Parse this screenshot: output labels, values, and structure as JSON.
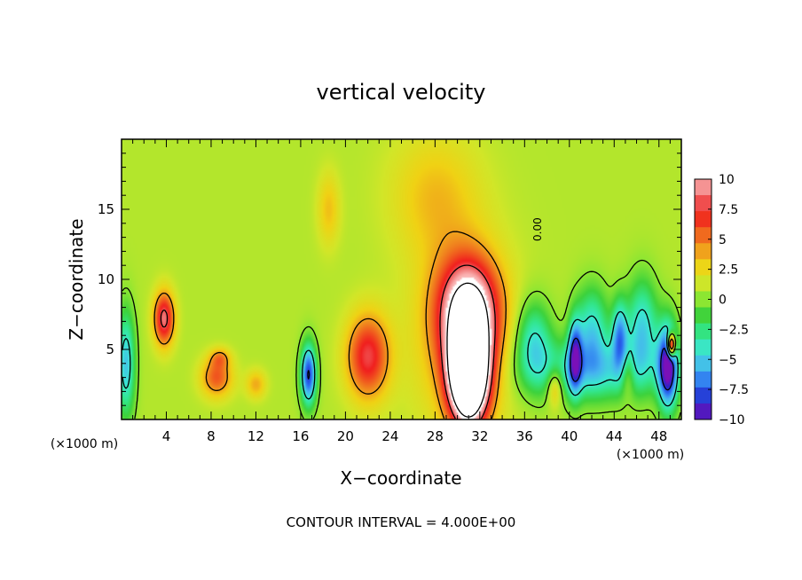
{
  "chart_data": {
    "type": "heatmap",
    "title": "vertical velocity",
    "xlabel": "X−coordinate",
    "ylabel": "Z−coordinate",
    "x_unit_left": "(×1000 m)",
    "x_unit_right": "(×1000 m)",
    "footer": "CONTOUR INTERVAL = 4.000E+00",
    "contour_label": "0.00",
    "xlim": [
      0,
      50
    ],
    "ylim": [
      0,
      20
    ],
    "clim": [
      -10,
      10
    ],
    "x_ticks": [
      4,
      8,
      12,
      16,
      20,
      24,
      28,
      32,
      36,
      40,
      44,
      48
    ],
    "x_tick_labels": [
      "4",
      "8",
      "12",
      "16",
      "20",
      "24",
      "28",
      "32",
      "36",
      "40",
      "44",
      "48"
    ],
    "y_ticks": [
      5,
      10,
      15
    ],
    "y_tick_labels": [
      "5",
      "10",
      "15"
    ],
    "colorbar_ticks": [
      10,
      7.5,
      5,
      2.5,
      0,
      -2.5,
      -5,
      -7.5,
      -10
    ],
    "colorbar_tick_labels": [
      "10",
      "7.5",
      "5",
      "2.5",
      "0",
      "−2.5",
      "−5",
      "−7.5",
      "−10"
    ],
    "colorscale": [
      "#7a10b8",
      "#2424c8",
      "#2a6cf0",
      "#46b4f0",
      "#3ce6d2",
      "#32e68c",
      "#3cd23c",
      "#8ce632",
      "#d2e628",
      "#f0d214",
      "#f0961e",
      "#f05a1e",
      "#f01e1e",
      "#f06e6e",
      "#fab4b4"
    ],
    "features": [
      {
        "x": 31,
        "z": 3.5,
        "value": 22,
        "rx": 1.7,
        "rz": 3.6
      },
      {
        "x": 31,
        "z": 8.0,
        "value": 9,
        "rx": 2.6,
        "rz": 3.5
      },
      {
        "x": 30.5,
        "z": 6.0,
        "value": 4,
        "rx": 4.2,
        "rz": 6.5
      },
      {
        "x": 3.8,
        "z": 7.2,
        "value": 8,
        "rx": 0.9,
        "rz": 1.9
      },
      {
        "x": 22.0,
        "z": 4.5,
        "value": 7,
        "rx": 1.9,
        "rz": 3.0
      },
      {
        "x": 8.5,
        "z": 3.0,
        "value": 5,
        "rx": 1.4,
        "rz": 1.4
      },
      {
        "x": 12.0,
        "z": 2.5,
        "value": 3,
        "rx": 0.9,
        "rz": 1.0
      },
      {
        "x": 8.8,
        "z": 4.4,
        "value": 3,
        "rx": 0.9,
        "rz": 0.7
      },
      {
        "x": 18.5,
        "z": 15.0,
        "value": 2.5,
        "rx": 1.0,
        "rz": 2.6
      },
      {
        "x": 38.7,
        "z": 2.3,
        "value": 4,
        "rx": 0.7,
        "rz": 1.4
      },
      {
        "x": 45.2,
        "z": 3.2,
        "value": 3,
        "rx": 0.6,
        "rz": 1.6
      },
      {
        "x": 28.0,
        "z": 16.0,
        "value": 2.5,
        "rx": 4.0,
        "rz": 4.5
      },
      {
        "x": 16.7,
        "z": 3.2,
        "value": -9,
        "rx": 0.7,
        "rz": 2.2
      },
      {
        "x": 48.8,
        "z": 3.8,
        "value": -11,
        "rx": 0.9,
        "rz": 3.0
      },
      {
        "x": 49.1,
        "z": 5.3,
        "value": 14,
        "rx": 0.35,
        "rz": 0.8
      },
      {
        "x": 40.5,
        "z": 4.5,
        "value": -7,
        "rx": 0.6,
        "rz": 2.6
      },
      {
        "x": 44.5,
        "z": 6.0,
        "value": -6,
        "rx": 0.7,
        "rz": 2.5
      },
      {
        "x": 42.0,
        "z": 6.5,
        "value": -5,
        "rx": 1.5,
        "rz": 3.0
      },
      {
        "x": 46.5,
        "z": 6.5,
        "value": -5.5,
        "rx": 1.4,
        "rz": 3.5
      },
      {
        "x": 36.8,
        "z": 5.5,
        "value": -5,
        "rx": 1.6,
        "rz": 3.0
      },
      {
        "x": 42.0,
        "z": 3.5,
        "value": -5,
        "rx": 5.5,
        "rz": 2.2
      },
      {
        "x": 0.4,
        "z": 4.0,
        "value": -6,
        "rx": 0.8,
        "rz": 3.8
      }
    ]
  }
}
